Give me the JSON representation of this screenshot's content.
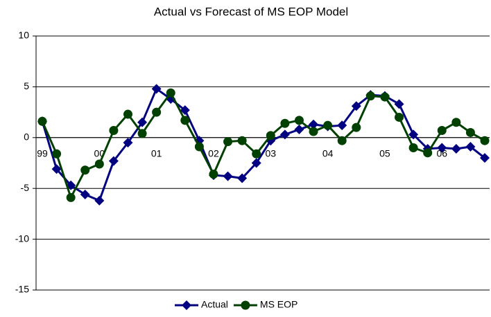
{
  "chart_data": {
    "type": "line",
    "title": "Actual vs Forecast of MS EOP Model",
    "categories": [
      "99",
      null,
      null,
      null,
      "00",
      null,
      null,
      null,
      "01",
      null,
      null,
      null,
      "02",
      null,
      null,
      null,
      "03",
      null,
      null,
      null,
      "04",
      null,
      null,
      null,
      "05",
      null,
      null,
      null,
      "06",
      null,
      null,
      null
    ],
    "series": [
      {
        "name": "Actual",
        "color": "#000080",
        "marker": "diamond",
        "values": [
          1.6,
          -3.1,
          -4.7,
          -5.6,
          -6.2,
          -2.3,
          -0.5,
          1.5,
          4.8,
          3.8,
          2.7,
          -0.3,
          -3.7,
          -3.8,
          -4.0,
          -2.5,
          -0.3,
          0.3,
          0.8,
          1.3,
          1.1,
          1.2,
          3.1,
          4.2,
          4.1,
          3.3,
          0.3,
          -1.1,
          -1.0,
          -1.1,
          -0.9,
          -2.0
        ]
      },
      {
        "name": "MS EOP",
        "color": "#004000",
        "marker": "circle",
        "values": [
          1.6,
          -1.6,
          -5.9,
          -3.2,
          -2.6,
          0.7,
          2.3,
          0.4,
          2.5,
          4.4,
          1.7,
          -0.9,
          -3.6,
          -0.4,
          -0.3,
          -1.6,
          0.2,
          1.4,
          1.7,
          0.6,
          1.2,
          -0.3,
          1.0,
          4.1,
          4.0,
          2.0,
          -1.0,
          -1.5,
          0.7,
          1.5,
          0.5,
          -0.3
        ]
      }
    ],
    "ylim": [
      -15,
      10
    ],
    "yticks": [
      -15,
      -10,
      -5,
      0,
      5,
      10
    ],
    "grid": true,
    "legend": "bottom"
  }
}
